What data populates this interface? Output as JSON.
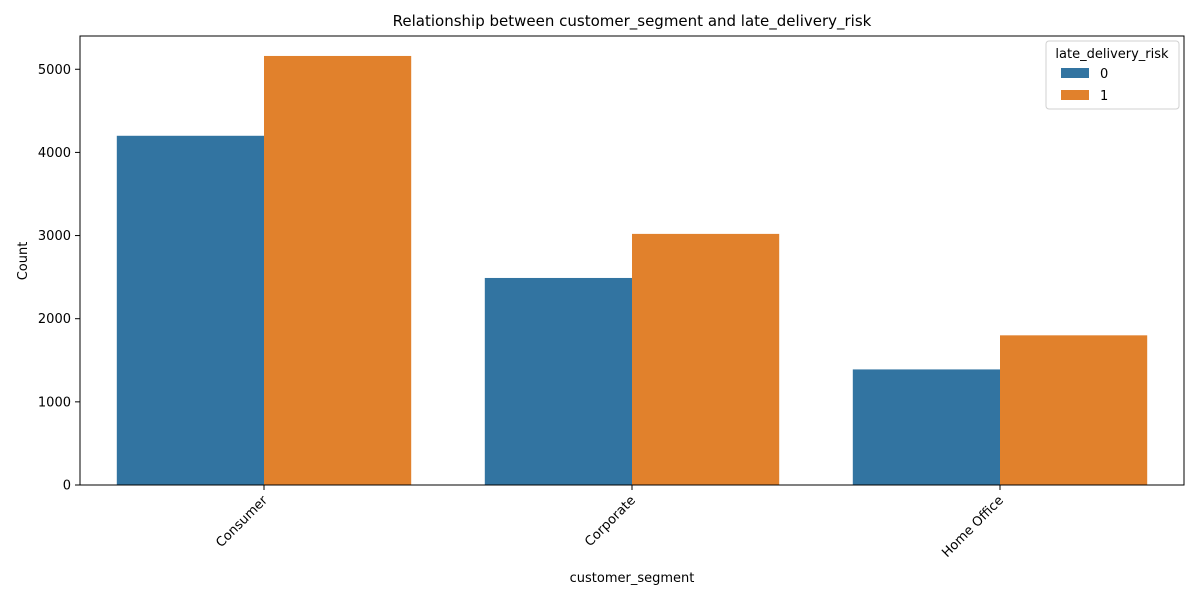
{
  "chart_data": {
    "type": "bar",
    "title": "Relationship between customer_segment and late_delivery_risk",
    "xlabel": "customer_segment",
    "ylabel": "Count",
    "categories": [
      "Consumer",
      "Corporate",
      "Home Office"
    ],
    "series": [
      {
        "name": "0",
        "values": [
          4200,
          2490,
          1390
        ],
        "color": "#3274a1"
      },
      {
        "name": "1",
        "values": [
          5160,
          3020,
          1800
        ],
        "color": "#e1812c"
      }
    ],
    "ylim": [
      0,
      5400
    ],
    "yticks": [
      0,
      1000,
      2000,
      3000,
      4000,
      5000
    ],
    "legend_title": "late_delivery_risk",
    "legend_position": "top-right",
    "grid": false
  }
}
